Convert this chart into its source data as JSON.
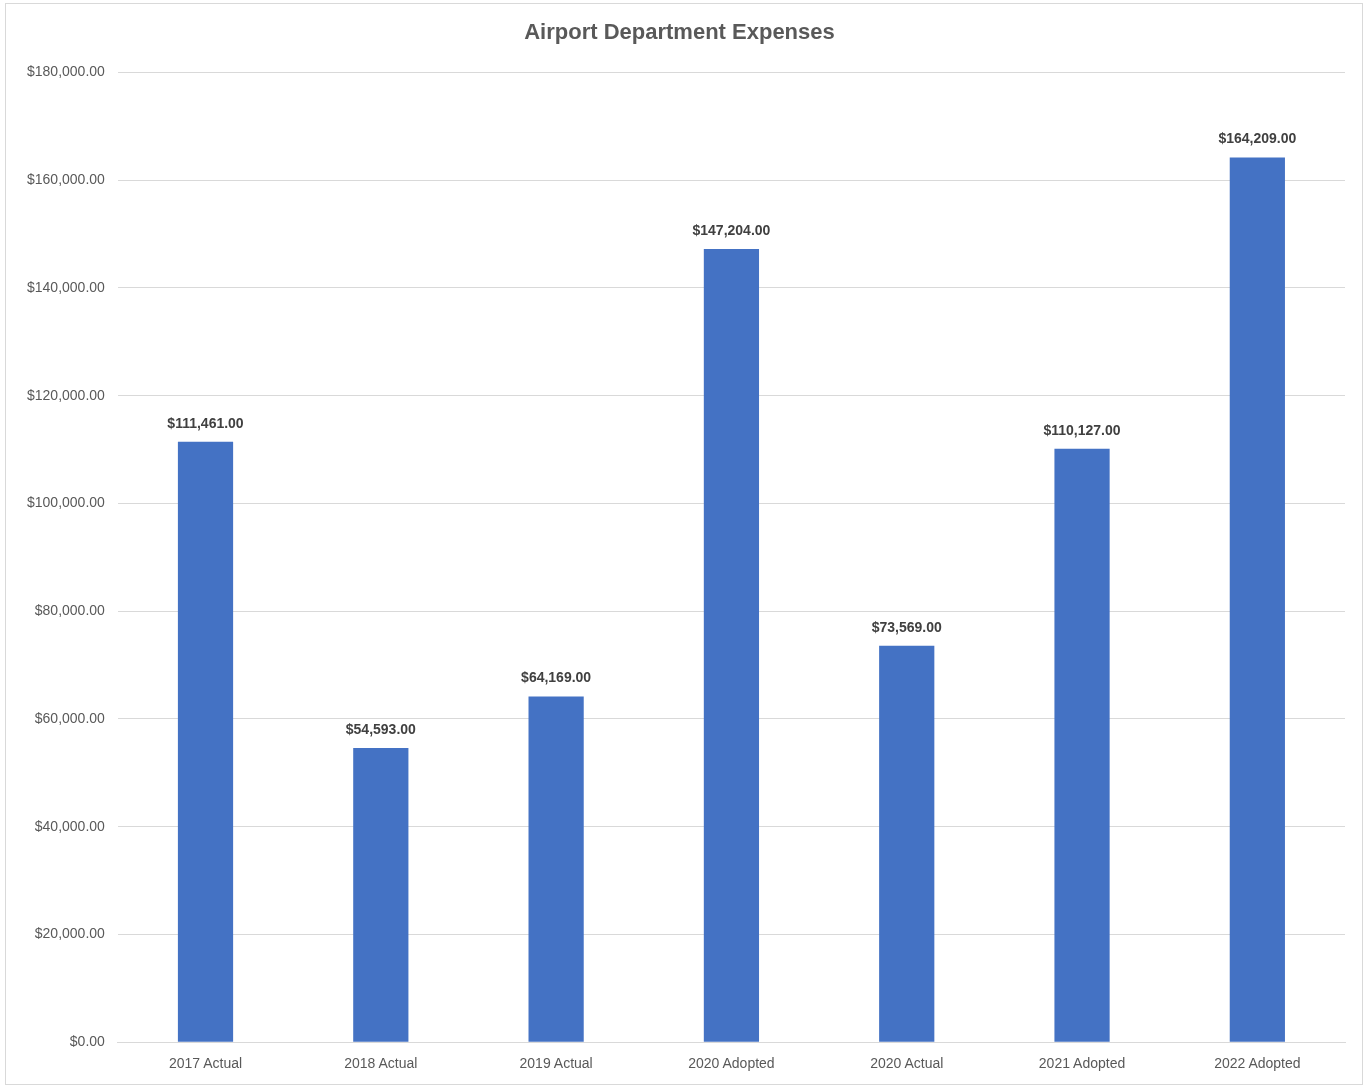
{
  "chart_data": {
    "type": "bar",
    "title": "Airport Department Expenses",
    "categories": [
      "2017 Actual",
      "2018 Actual",
      "2019 Actual",
      "2020 Adopted",
      "2020 Actual",
      "2021 Adopted",
      "2022 Adopted"
    ],
    "values": [
      111461,
      54593,
      64169,
      147204,
      73569,
      110127,
      164209
    ],
    "value_labels": [
      "$111,461.00",
      "$54,593.00",
      "$64,169.00",
      "$147,204.00",
      "$73,569.00",
      "$110,127.00",
      "$164,209.00"
    ],
    "color": "#4472c4",
    "ylim": [
      0,
      180000
    ],
    "yticks": [
      {
        "value": 0,
        "label": "$0.00"
      },
      {
        "value": 20000,
        "label": "$20,000.00"
      },
      {
        "value": 40000,
        "label": "$40,000.00"
      },
      {
        "value": 60000,
        "label": "$60,000.00"
      },
      {
        "value": 80000,
        "label": "$80,000.00"
      },
      {
        "value": 100000,
        "label": "$100,000.00"
      },
      {
        "value": 120000,
        "label": "$120,000.00"
      },
      {
        "value": 140000,
        "label": "$140,000.00"
      },
      {
        "value": 160000,
        "label": "$160,000.00"
      },
      {
        "value": 180000,
        "label": "$180,000.00"
      }
    ],
    "grid": "y"
  }
}
